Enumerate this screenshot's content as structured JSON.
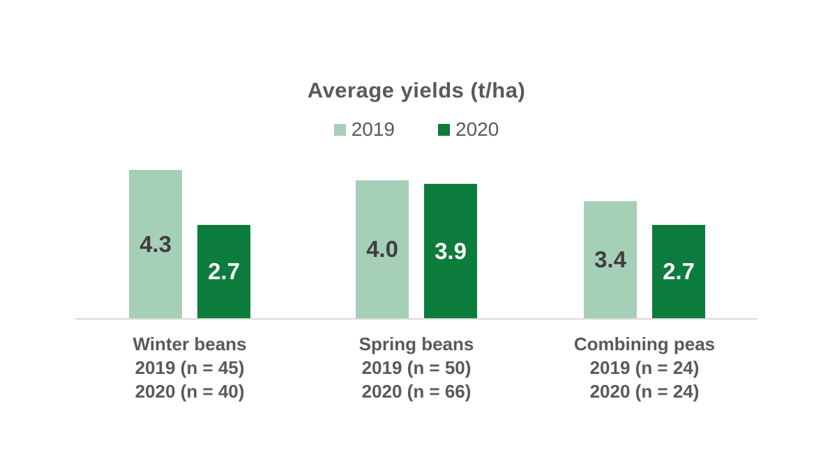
{
  "title": "Average yields (t/ha)",
  "colors": {
    "series_2019": "#a6cfb8",
    "series_2020": "#0c7c3c",
    "title_text": "#595959",
    "category_text": "#595959",
    "value_label_on_light": "#3f3f3f",
    "value_label_on_dark": "#ffffff",
    "axis_line": "#d9d9d9"
  },
  "legend": {
    "items": [
      {
        "label": "2019",
        "color": "#a6cfb8"
      },
      {
        "label": "2020",
        "color": "#0c7c3c"
      }
    ]
  },
  "chart_data": {
    "type": "bar",
    "title": "Average yields (t/ha)",
    "categories": [
      "Winter beans",
      "Spring beans",
      "Combining peas"
    ],
    "category_sublabels": [
      [
        "2019 (n = 45)",
        "2020 (n = 40)"
      ],
      [
        "2019 (n = 50)",
        "2020 (n = 66)"
      ],
      [
        "2019 (n = 24)",
        "2020 (n = 24)"
      ]
    ],
    "series": [
      {
        "name": "2019",
        "values": [
          4.3,
          4.0,
          3.4
        ]
      },
      {
        "name": "2020",
        "values": [
          2.7,
          3.9,
          2.7
        ]
      }
    ],
    "xlabel": "",
    "ylabel": "",
    "ylim": [
      0,
      4.5
    ],
    "grid": false,
    "legend_position": "top",
    "value_labels": "inside-center",
    "axis_visible": "x-only"
  }
}
